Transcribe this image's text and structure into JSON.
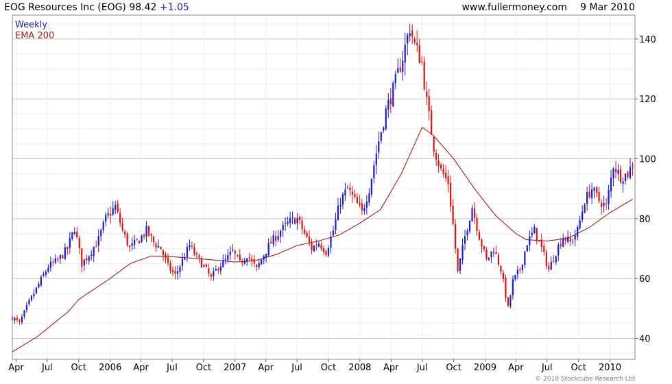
{
  "header": {
    "title": "EOG Resources Inc (EOG) 98.42",
    "change": "+1.05",
    "source": "www.fullermoney.com",
    "date": "9 Mar 2010"
  },
  "legend": {
    "weekly": "Weekly",
    "ema": "EMA 200"
  },
  "credit": "© 2010 Stockcube Research Ltd",
  "colors": {
    "up": "#1a1ad8",
    "down": "#e01010",
    "ema": "#a51c1c",
    "grid": "#d4d4d4",
    "legend_weekly": "#1a1ab0",
    "legend_ema": "#a51c1c"
  },
  "chart_data": {
    "type": "candlestick",
    "title": "EOG Resources Inc (EOG) 98.42 +1.05",
    "xlabel": "",
    "ylabel": "",
    "ylim": [
      33,
      148
    ],
    "xlim": [
      "2005-03-21",
      "2010-03-15"
    ],
    "y_ticks": [
      40,
      60,
      80,
      100,
      120,
      140
    ],
    "x_ticks": [
      {
        "label": "Apr",
        "date": "2005-04-01"
      },
      {
        "label": "Jul",
        "date": "2005-07-01"
      },
      {
        "label": "Oct",
        "date": "2005-10-01"
      },
      {
        "label": "2006",
        "date": "2006-01-01"
      },
      {
        "label": "Apr",
        "date": "2006-04-01"
      },
      {
        "label": "Jul",
        "date": "2006-07-01"
      },
      {
        "label": "Oct",
        "date": "2006-10-01"
      },
      {
        "label": "2007",
        "date": "2007-01-01"
      },
      {
        "label": "Apr",
        "date": "2007-04-01"
      },
      {
        "label": "Jul",
        "date": "2007-07-01"
      },
      {
        "label": "Oct",
        "date": "2007-10-01"
      },
      {
        "label": "2008",
        "date": "2008-01-01"
      },
      {
        "label": "Apr",
        "date": "2008-04-01"
      },
      {
        "label": "Jul",
        "date": "2008-07-01"
      },
      {
        "label": "Oct",
        "date": "2008-10-01"
      },
      {
        "label": "2009",
        "date": "2009-01-01"
      },
      {
        "label": "Apr",
        "date": "2009-04-01"
      },
      {
        "label": "Jul",
        "date": "2009-07-01"
      },
      {
        "label": "Oct",
        "date": "2009-10-01"
      },
      {
        "label": "2010",
        "date": "2010-01-01"
      }
    ],
    "grid": true,
    "legend_position": "top-left",
    "series": [
      {
        "name": "Weekly",
        "kind": "candlestick",
        "close_path": [
          [
            "2005-03-21",
            47
          ],
          [
            "2005-04-11",
            45
          ],
          [
            "2005-05-09",
            52
          ],
          [
            "2005-06-06",
            58
          ],
          [
            "2005-07-04",
            64
          ],
          [
            "2005-08-01",
            66
          ],
          [
            "2005-08-29",
            70
          ],
          [
            "2005-09-19",
            77
          ],
          [
            "2005-10-10",
            65
          ],
          [
            "2005-10-31",
            68
          ],
          [
            "2005-11-28",
            73
          ],
          [
            "2005-12-19",
            80
          ],
          [
            "2006-01-16",
            84
          ],
          [
            "2006-02-06",
            76
          ],
          [
            "2006-02-27",
            70
          ],
          [
            "2006-03-27",
            73
          ],
          [
            "2006-04-17",
            76
          ],
          [
            "2006-05-08",
            72
          ],
          [
            "2006-05-29",
            70
          ],
          [
            "2006-06-19",
            64
          ],
          [
            "2006-07-10",
            61
          ],
          [
            "2006-07-31",
            66
          ],
          [
            "2006-08-21",
            71
          ],
          [
            "2006-09-11",
            67
          ],
          [
            "2006-10-02",
            64
          ],
          [
            "2006-10-23",
            60
          ],
          [
            "2006-11-13",
            64
          ],
          [
            "2006-12-04",
            66
          ],
          [
            "2006-12-25",
            69
          ],
          [
            "2007-01-15",
            65
          ],
          [
            "2007-02-05",
            68
          ],
          [
            "2007-03-05",
            63
          ],
          [
            "2007-03-26",
            68
          ],
          [
            "2007-04-16",
            72
          ],
          [
            "2007-05-14",
            76
          ],
          [
            "2007-06-11",
            79
          ],
          [
            "2007-07-02",
            80
          ],
          [
            "2007-07-23",
            75
          ],
          [
            "2007-08-13",
            70
          ],
          [
            "2007-09-03",
            72
          ],
          [
            "2007-09-24",
            69
          ],
          [
            "2007-10-15",
            76
          ],
          [
            "2007-11-05",
            86
          ],
          [
            "2007-11-26",
            90
          ],
          [
            "2007-12-17",
            86
          ],
          [
            "2008-01-07",
            82
          ],
          [
            "2008-01-28",
            90
          ],
          [
            "2008-02-25",
            106
          ],
          [
            "2008-03-17",
            116
          ],
          [
            "2008-04-07",
            123
          ],
          [
            "2008-05-05",
            134
          ],
          [
            "2008-05-26",
            144
          ],
          [
            "2008-06-09",
            138
          ],
          [
            "2008-06-30",
            132
          ],
          [
            "2008-07-14",
            119
          ],
          [
            "2008-08-04",
            104
          ],
          [
            "2008-08-25",
            96
          ],
          [
            "2008-09-15",
            92
          ],
          [
            "2008-09-29",
            78
          ],
          [
            "2008-10-13",
            62
          ],
          [
            "2008-11-03",
            74
          ],
          [
            "2008-11-24",
            84
          ],
          [
            "2008-12-15",
            74
          ],
          [
            "2009-01-05",
            66
          ],
          [
            "2009-01-26",
            70
          ],
          [
            "2009-02-16",
            63
          ],
          [
            "2009-03-09",
            50
          ],
          [
            "2009-03-23",
            59
          ],
          [
            "2009-04-13",
            63
          ],
          [
            "2009-05-04",
            72
          ],
          [
            "2009-05-25",
            76
          ],
          [
            "2009-06-15",
            70
          ],
          [
            "2009-07-06",
            63
          ],
          [
            "2009-07-27",
            69
          ],
          [
            "2009-08-17",
            74
          ],
          [
            "2009-09-07",
            72
          ],
          [
            "2009-09-28",
            76
          ],
          [
            "2009-10-19",
            86
          ],
          [
            "2009-11-09",
            90
          ],
          [
            "2009-11-30",
            86
          ],
          [
            "2009-12-21",
            84
          ],
          [
            "2010-01-11",
            98
          ],
          [
            "2010-02-01",
            94
          ],
          [
            "2010-02-22",
            95
          ],
          [
            "2010-03-08",
            98.42
          ]
        ]
      },
      {
        "name": "EMA 200",
        "kind": "line",
        "points": [
          [
            "2005-03-21",
            35.5
          ],
          [
            "2005-06-01",
            40.5
          ],
          [
            "2005-09-01",
            49
          ],
          [
            "2005-10-01",
            53
          ],
          [
            "2006-01-01",
            60
          ],
          [
            "2006-03-01",
            65
          ],
          [
            "2006-05-01",
            67.5
          ],
          [
            "2006-07-01",
            67.3
          ],
          [
            "2006-10-01",
            66.5
          ],
          [
            "2007-01-01",
            65.5
          ],
          [
            "2007-03-01",
            66
          ],
          [
            "2007-05-01",
            68
          ],
          [
            "2007-07-01",
            71
          ],
          [
            "2007-09-01",
            72.5
          ],
          [
            "2007-11-01",
            74.5
          ],
          [
            "2008-01-01",
            78.5
          ],
          [
            "2008-03-01",
            83
          ],
          [
            "2008-05-01",
            95
          ],
          [
            "2008-07-01",
            110.5
          ],
          [
            "2008-08-01",
            108
          ],
          [
            "2008-10-01",
            100
          ],
          [
            "2008-12-01",
            90
          ],
          [
            "2009-02-01",
            81
          ],
          [
            "2009-04-01",
            75
          ],
          [
            "2009-05-01",
            73
          ],
          [
            "2009-07-01",
            72.5
          ],
          [
            "2009-09-01",
            73.5
          ],
          [
            "2009-11-01",
            77
          ],
          [
            "2010-01-01",
            82
          ],
          [
            "2010-03-08",
            86.5
          ]
        ]
      }
    ]
  }
}
